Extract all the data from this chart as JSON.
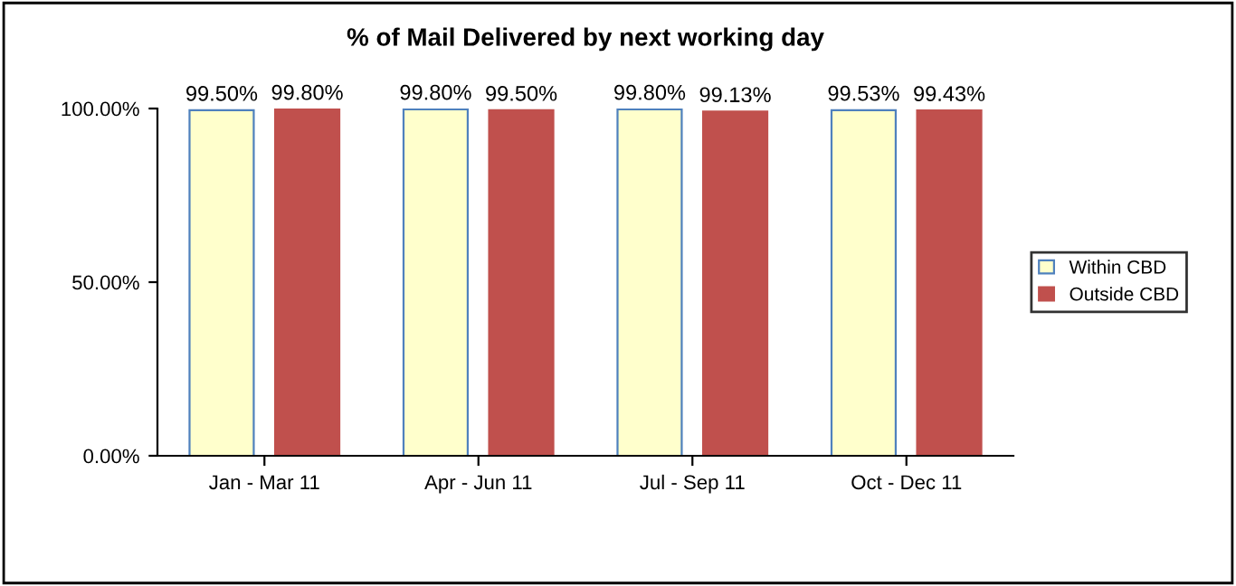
{
  "chart_data": {
    "type": "bar",
    "title": "% of Mail Delivered by next working day",
    "categories": [
      "Jan - Mar 11",
      "Apr - Jun 11",
      "Jul - Sep 11",
      "Oct - Dec 11"
    ],
    "series": [
      {
        "name": "Within CBD",
        "color": "#ffffcc",
        "values": [
          99.5,
          99.8,
          99.8,
          99.53
        ],
        "value_labels": [
          "99.50%",
          "99.80%",
          "99.80%",
          "99.53%"
        ]
      },
      {
        "name": "Outside CBD",
        "color": "#c0504d",
        "values": [
          99.8,
          99.5,
          99.13,
          99.43
        ],
        "value_labels": [
          "99.80%",
          "99.50%",
          "99.13%",
          "99.43%"
        ]
      }
    ],
    "ylim": [
      0,
      100
    ],
    "yticks": [
      {
        "value": 0,
        "label": "0.00%"
      },
      {
        "value": 50,
        "label": "50.00%"
      },
      {
        "value": 100,
        "label": "100.00%"
      }
    ],
    "grid": false,
    "legend": "right"
  }
}
